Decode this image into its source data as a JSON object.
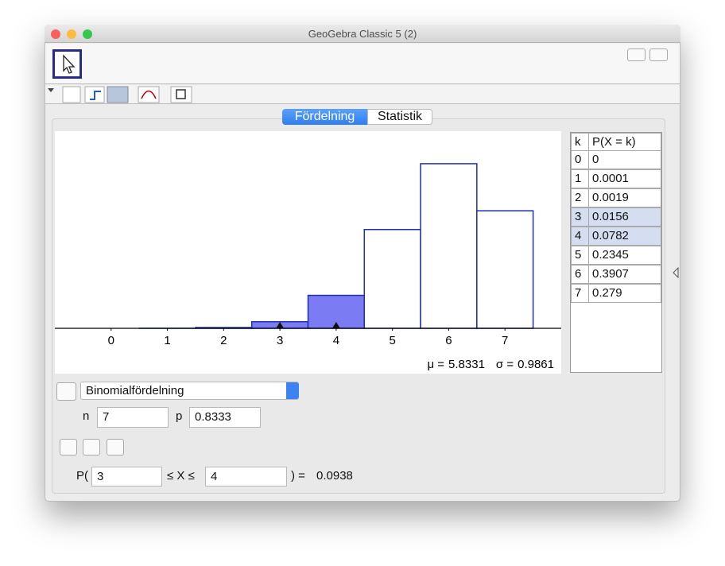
{
  "window": {
    "title": "GeoGebra Classic 5 (2)"
  },
  "tabs": [
    "Fördelning",
    "Statistik"
  ],
  "distribution": "Binomialfördelning",
  "parameters": [
    {
      "name": "n",
      "value": 7
    },
    {
      "name": "p",
      "value": 0.8333
    }
  ],
  "chart_data": {
    "type": "bar",
    "x": [
      0,
      1,
      2,
      3,
      4,
      5,
      6,
      7
    ],
    "values": [
      0,
      0.0001,
      0.0019,
      0.0156,
      0.0782,
      0.2345,
      0.3907,
      0.279
    ],
    "xlim": [
      -1,
      8
    ],
    "xticks": [
      0,
      1,
      2,
      3,
      4,
      5,
      6,
      7
    ],
    "color": "#1f2fb0",
    "highlight_color": "#7b7cf3",
    "table_header": [
      "k",
      "P(X = k)"
    ],
    "mean_label": "μ =",
    "mean": 5.8331,
    "sd_label": "σ =",
    "sd": 0.9861
  },
  "probability": {
    "prefix": "P(",
    "lower": 3,
    "relation": "≤ X ≤",
    "upper": 4,
    "suffix": ") =",
    "result": 0.0938
  }
}
